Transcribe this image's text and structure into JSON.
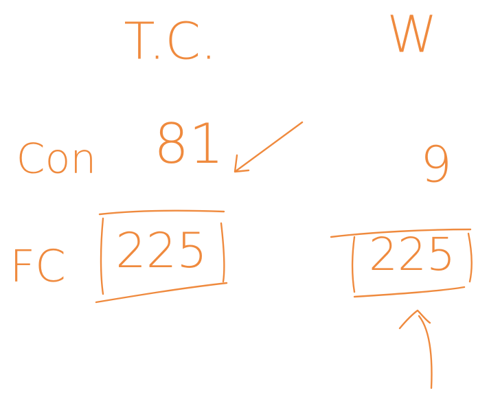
{
  "columns": [
    {
      "heading": "T.C.",
      "rows": [
        {
          "label": "Con",
          "value": 81
        },
        {
          "label": "FC",
          "value": 225
        }
      ]
    },
    {
      "heading": "W",
      "rows": [
        {
          "value": 9
        },
        {
          "value": 225
        }
      ]
    }
  ]
}
